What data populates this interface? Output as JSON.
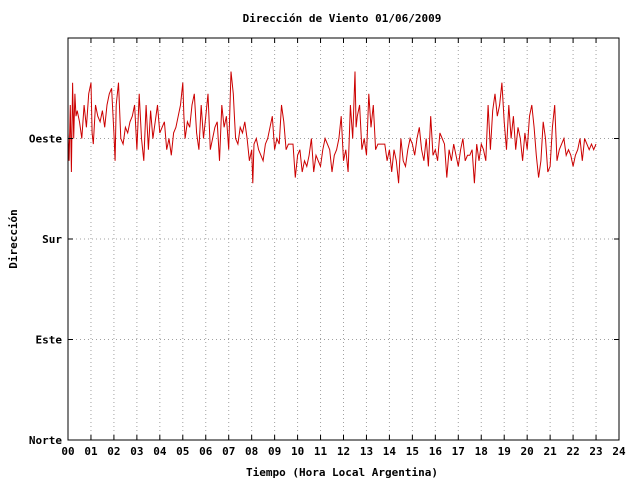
{
  "chart_data": {
    "type": "line",
    "title": "Dirección de Viento 01/06/2009",
    "xlabel": "Tiempo (Hora Local Argentina)",
    "ylabel": "Dirección",
    "xlim": [
      0,
      24
    ],
    "x_ticks": [
      "00",
      "01",
      "02",
      "03",
      "04",
      "05",
      "06",
      "07",
      "08",
      "09",
      "10",
      "11",
      "12",
      "13",
      "14",
      "15",
      "16",
      "17",
      "18",
      "19",
      "20",
      "21",
      "22",
      "23",
      "24"
    ],
    "ylim": [
      0,
      360
    ],
    "y_ticks": [
      {
        "value": 0,
        "label": "Norte"
      },
      {
        "value": 90,
        "label": "Este"
      },
      {
        "value": 180,
        "label": "Sur"
      },
      {
        "value": 270,
        "label": "Oeste"
      }
    ],
    "grid": true,
    "series_color": "#cc0000",
    "x": [
      0.0,
      0.05,
      0.1,
      0.15,
      0.2,
      0.25,
      0.3,
      0.35,
      0.4,
      0.5,
      0.6,
      0.7,
      0.8,
      0.9,
      1.0,
      1.05,
      1.1,
      1.2,
      1.3,
      1.4,
      1.5,
      1.6,
      1.7,
      1.8,
      1.9,
      2.0,
      2.05,
      2.1,
      2.2,
      2.3,
      2.4,
      2.5,
      2.6,
      2.7,
      2.8,
      2.9,
      3.0,
      3.1,
      3.2,
      3.3,
      3.4,
      3.5,
      3.6,
      3.7,
      3.8,
      3.9,
      4.0,
      4.1,
      4.2,
      4.3,
      4.4,
      4.5,
      4.6,
      4.7,
      4.8,
      4.9,
      5.0,
      5.05,
      5.1,
      5.2,
      5.3,
      5.4,
      5.5,
      5.6,
      5.7,
      5.8,
      5.9,
      6.0,
      6.1,
      6.2,
      6.3,
      6.4,
      6.5,
      6.6,
      6.7,
      6.8,
      6.9,
      7.0,
      7.1,
      7.2,
      7.25,
      7.3,
      7.4,
      7.5,
      7.6,
      7.7,
      7.8,
      7.9,
      8.0,
      8.05,
      8.1,
      8.2,
      8.3,
      8.4,
      8.5,
      8.6,
      8.7,
      8.8,
      8.9,
      9.0,
      9.1,
      9.2,
      9.3,
      9.4,
      9.5,
      9.6,
      9.7,
      9.8,
      9.9,
      10.0,
      10.1,
      10.2,
      10.3,
      10.4,
      10.5,
      10.6,
      10.7,
      10.8,
      10.9,
      11.0,
      11.1,
      11.2,
      11.3,
      11.4,
      11.5,
      11.6,
      11.7,
      11.8,
      11.9,
      12.0,
      12.1,
      12.2,
      12.3,
      12.4,
      12.5,
      12.55,
      12.6,
      12.7,
      12.8,
      12.9,
      13.0,
      13.1,
      13.2,
      13.3,
      13.4,
      13.5,
      13.6,
      13.7,
      13.8,
      13.9,
      14.0,
      14.1,
      14.2,
      14.3,
      14.4,
      14.5,
      14.6,
      14.7,
      14.8,
      14.9,
      15.0,
      15.1,
      15.2,
      15.3,
      15.4,
      15.5,
      15.6,
      15.7,
      15.8,
      15.9,
      16.0,
      16.1,
      16.2,
      16.3,
      16.4,
      16.5,
      16.6,
      16.7,
      16.8,
      16.9,
      17.0,
      17.1,
      17.2,
      17.3,
      17.4,
      17.5,
      17.6,
      17.7,
      17.8,
      17.9,
      18.0,
      18.1,
      18.2,
      18.3,
      18.4,
      18.5,
      18.6,
      18.7,
      18.8,
      18.9,
      19.0,
      19.1,
      19.2,
      19.3,
      19.4,
      19.5,
      19.6,
      19.7,
      19.8,
      19.9,
      20.0,
      20.1,
      20.2,
      20.3,
      20.4,
      20.5,
      20.6,
      20.7,
      20.8,
      20.9,
      21.0,
      21.1,
      21.2,
      21.3,
      21.4,
      21.5,
      21.6,
      21.7,
      21.8,
      21.9,
      22.0,
      22.1,
      22.2,
      22.3,
      22.4,
      22.5,
      22.6,
      22.7,
      22.8,
      22.9,
      23.0
    ],
    "y": [
      275,
      250,
      300,
      240,
      320,
      270,
      310,
      290,
      295,
      285,
      270,
      300,
      280,
      310,
      320,
      275,
      265,
      300,
      290,
      285,
      295,
      280,
      300,
      310,
      315,
      275,
      250,
      300,
      320,
      270,
      265,
      280,
      275,
      285,
      290,
      300,
      260,
      310,
      270,
      250,
      300,
      260,
      295,
      270,
      285,
      300,
      275,
      280,
      285,
      260,
      270,
      255,
      275,
      280,
      290,
      300,
      320,
      290,
      270,
      285,
      280,
      300,
      310,
      275,
      260,
      300,
      270,
      290,
      310,
      260,
      270,
      280,
      285,
      250,
      300,
      280,
      290,
      260,
      330,
      310,
      290,
      270,
      265,
      280,
      275,
      285,
      270,
      250,
      260,
      230,
      265,
      270,
      260,
      255,
      250,
      265,
      270,
      280,
      290,
      260,
      270,
      265,
      300,
      285,
      260,
      265,
      265,
      265,
      235,
      255,
      260,
      240,
      250,
      245,
      255,
      270,
      240,
      255,
      250,
      245,
      260,
      270,
      265,
      260,
      240,
      255,
      260,
      270,
      290,
      250,
      260,
      240,
      300,
      270,
      330,
      280,
      290,
      300,
      260,
      270,
      255,
      310,
      280,
      300,
      260,
      265,
      265,
      265,
      265,
      250,
      260,
      240,
      260,
      250,
      230,
      270,
      250,
      245,
      260,
      270,
      265,
      255,
      270,
      280,
      260,
      250,
      270,
      245,
      290,
      255,
      260,
      250,
      275,
      270,
      265,
      235,
      260,
      250,
      265,
      255,
      245,
      260,
      270,
      250,
      255,
      255,
      260,
      230,
      265,
      250,
      265,
      260,
      250,
      300,
      260,
      295,
      310,
      290,
      300,
      320,
      285,
      260,
      300,
      270,
      290,
      260,
      280,
      270,
      250,
      275,
      260,
      290,
      300,
      280,
      255,
      235,
      250,
      285,
      270,
      240,
      245,
      280,
      300,
      250,
      260,
      265,
      270,
      255,
      260,
      255,
      245,
      255,
      260,
      270,
      250,
      270,
      265,
      260,
      265,
      260,
      265
    ]
  }
}
